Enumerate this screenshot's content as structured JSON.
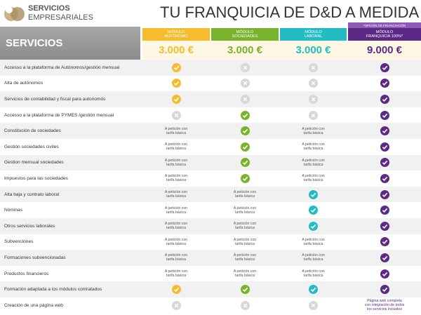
{
  "logo": {
    "line1": "SERVICIOS",
    "line2": "EMPRESARIALES"
  },
  "title": "TU FRANQUICIA DE D&D A MEDIDA",
  "services_header": "SERVICIOS",
  "financing_note": "*OPCIÓN DE FINANCIACIÓN",
  "columns": [
    {
      "name": [
        "MÓDULO",
        "AUTÓNOMO"
      ],
      "price": "3.000 €",
      "color": "#f5bd2e"
    },
    {
      "name": [
        "MÓDULO",
        "SOCIEDADES"
      ],
      "price": "3.000 €",
      "color": "#79b32b"
    },
    {
      "name": [
        "MÓDULO",
        "LABORAL"
      ],
      "price": "3.000 €",
      "color": "#22bcc2"
    },
    {
      "name": [
        "MÓDULO",
        "FRANQUICIA 100%*"
      ],
      "price": "9.000 €",
      "color": "#5c2a85"
    }
  ],
  "rows": [
    {
      "label": "Accesso a la plataforma de Autónomos/gestión mensual",
      "cells": [
        true,
        false,
        false,
        true
      ]
    },
    {
      "label": "Alta de autónomos",
      "cells": [
        true,
        false,
        false,
        true
      ]
    },
    {
      "label": "Servicios de contabilidad y fiscal para autonomós",
      "cells": [
        true,
        false,
        false,
        true
      ]
    },
    {
      "label": "Accesso a la plataforma de PYMES /gestión mensual",
      "cells": [
        false,
        true,
        false,
        true
      ]
    },
    {
      "label": "Constitución de sociedades",
      "cells": [
        [
          "A petición con",
          "tarifa básica"
        ],
        true,
        [
          "A petición con",
          "tarifa básica"
        ],
        true
      ]
    },
    {
      "label": "Gestión sociedades civiles",
      "cells": [
        [
          "A petición con",
          "tarifa básica"
        ],
        true,
        [
          "A petición con",
          "tarifa básica"
        ],
        true
      ]
    },
    {
      "label": "Gestion mensual sociedades",
      "cells": [
        [
          "A petición con",
          "tarifa básica"
        ],
        true,
        [
          "A petición con",
          "tarifa básica"
        ],
        true
      ]
    },
    {
      "label": "Impuestos para las sociedades",
      "cells": [
        [
          "A petición con",
          "tarifa básica"
        ],
        true,
        [
          "A petición con",
          "tarifa básica"
        ],
        true
      ]
    },
    {
      "label": "Alta baja y contrato laboral",
      "cells": [
        [
          "A petición con",
          "tarifa básica"
        ],
        [
          "A petición con",
          "tarifa básica"
        ],
        true,
        true
      ]
    },
    {
      "label": "Nóminas",
      "cells": [
        [
          "A petición con",
          "tarifa básica"
        ],
        [
          "A petición con",
          "tarifa básica"
        ],
        true,
        true
      ]
    },
    {
      "label": "Otros servicios laborales",
      "cells": [
        [
          "A petición con",
          "tarifa básica"
        ],
        [
          "A petición con",
          "tarifa básica"
        ],
        true,
        true
      ]
    },
    {
      "label": "Subvenciones",
      "cells": [
        [
          "A petición con",
          "tarifa básica"
        ],
        [
          "A petición con",
          "tarifa básica"
        ],
        [
          "A petición con",
          "tarifa básica"
        ],
        true
      ]
    },
    {
      "label": "Formaciones subvencionadas",
      "cells": [
        [
          "A petición con",
          "tarifa básica"
        ],
        [
          "A petición con",
          "tarifa básica"
        ],
        [
          "A petición con",
          "tarifa básica"
        ],
        true
      ]
    },
    {
      "label": "Productos financieros",
      "cells": [
        [
          "A petición con",
          "tarifa básica"
        ],
        [
          "A petición con",
          "tarifa básica"
        ],
        [
          "A petición con",
          "tarifa básica"
        ],
        true
      ]
    },
    {
      "label": "Formación adaptada a los módulos contratados",
      "cells": [
        true,
        true,
        true,
        true
      ]
    },
    {
      "label": "Creación de una página web",
      "cells": [
        false,
        false,
        false,
        [
          "Página web completa",
          "con integración de todos",
          "los servicios incluidos"
        ]
      ]
    }
  ]
}
